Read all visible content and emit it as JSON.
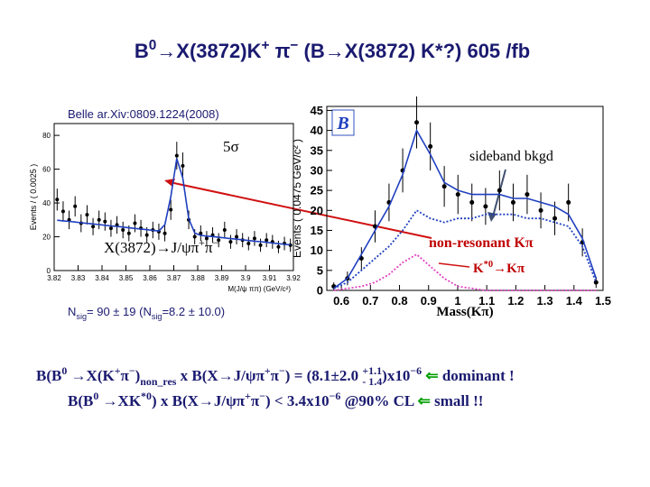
{
  "title": [
    {
      "text": "B"
    },
    {
      "text": "0",
      "shift": "up"
    },
    {
      "text": "→X(3872)K"
    },
    {
      "text": "+",
      "shift": "up"
    },
    {
      "text": " π"
    },
    {
      "text": "−",
      "shift": "up"
    },
    {
      "text": "  (B→X(3872) K*?) 605 /fb"
    }
  ],
  "annotations": {
    "source": "Belle ar.Xiv:0809.1224(2008)",
    "significance": "5σ",
    "decay": [
      {
        "text": "X(3872)→J/ψπ"
      },
      {
        "text": "+",
        "shift": "up"
      },
      {
        "text": "π"
      },
      {
        "text": "−",
        "shift": "up"
      }
    ],
    "yield": [
      {
        "text": "N"
      },
      {
        "text": "sig",
        "shift": "down"
      },
      {
        "text": "= 90 ± 19  (N"
      },
      {
        "text": "sig",
        "shift": "down"
      },
      {
        "text": "=8.2 ± 10.0)"
      }
    ],
    "sideband": "sideband bkgd",
    "nonresonant": "non-resonant Kπ",
    "kstar": [
      {
        "text": "K"
      },
      {
        "text": "*0",
        "shift": "up"
      },
      {
        "text": "→Kπ"
      }
    ]
  },
  "results": [
    [
      {
        "text": "B(B"
      },
      {
        "text": "0",
        "shift": "up"
      },
      {
        "text": " →X(K"
      },
      {
        "text": "+",
        "shift": "up"
      },
      {
        "text": "π"
      },
      {
        "text": "−",
        "shift": "up"
      },
      {
        "text": ")"
      },
      {
        "text": "non_res",
        "shift": "down"
      },
      {
        "text": " x B(X→J/ψπ"
      },
      {
        "text": "+",
        "shift": "up"
      },
      {
        "text": "π"
      },
      {
        "text": "−",
        "shift": "up"
      },
      {
        "text": ") = (8.1±2.0 "
      },
      {
        "text": "+1.1",
        "shift": "up"
      },
      {
        "text": "- 1.4",
        "shift": "down",
        "stack": true
      },
      {
        "text": ")x10"
      },
      {
        "text": "−6",
        "shift": "up"
      },
      {
        "text": " "
      },
      {
        "text": "⇐",
        "color": "#00a000"
      },
      {
        "text": " dominant !"
      }
    ],
    [
      {
        "text": "B(B"
      },
      {
        "text": "0",
        "shift": "up"
      },
      {
        "text": " →XK"
      },
      {
        "text": "*0",
        "shift": "up"
      },
      {
        "text": ") x B(X→J/ψπ"
      },
      {
        "text": "+",
        "shift": "up"
      },
      {
        "text": "π"
      },
      {
        "text": "−",
        "shift": "up"
      },
      {
        "text": ") < 3.4x10"
      },
      {
        "text": "−6",
        "shift": "up"
      },
      {
        "text": "   @90% CL "
      },
      {
        "text": "⇐",
        "color": "#00a000"
      },
      {
        "text": " small !!"
      }
    ]
  ],
  "chart_data": [
    {
      "type": "scatter",
      "ylabel": "Events / ( 0.0025 )",
      "xlabel": "M(J/ψ ππ) (GeV/c²)",
      "xlim": [
        3.82,
        3.92
      ],
      "xticks": [
        3.82,
        3.83,
        3.84,
        3.85,
        3.86,
        3.87,
        3.88,
        3.89,
        3.9,
        3.91,
        3.92
      ],
      "ylim": [
        0,
        87
      ],
      "yticks": [
        0,
        20,
        40,
        60,
        80
      ],
      "x": [
        3.82125,
        3.82375,
        3.82625,
        3.82875,
        3.83125,
        3.83375,
        3.83625,
        3.83875,
        3.84125,
        3.84375,
        3.84625,
        3.84875,
        3.85125,
        3.85375,
        3.85625,
        3.85875,
        3.86125,
        3.86375,
        3.86625,
        3.86875,
        3.87125,
        3.87375,
        3.87625,
        3.87875,
        3.88125,
        3.88375,
        3.88625,
        3.88875,
        3.89125,
        3.89375,
        3.89625,
        3.89875,
        3.90125,
        3.90375,
        3.90625,
        3.90875,
        3.91125,
        3.91375,
        3.91625,
        3.91875
      ],
      "series": [
        {
          "style": "points",
          "color": "#000000",
          "values": [
            42,
            35,
            30,
            38,
            28,
            33,
            26,
            30,
            29,
            25,
            27,
            24,
            22,
            28,
            25,
            21,
            24,
            23,
            22,
            36,
            68,
            62,
            30,
            20,
            22,
            19,
            21,
            18,
            24,
            17,
            20,
            18,
            16,
            19,
            15,
            18,
            17,
            14,
            16,
            15
          ],
          "errors": [
            6.5,
            6,
            5.5,
            6,
            5.3,
            5.7,
            5.1,
            5.5,
            5.4,
            5,
            5.2,
            4.9,
            4.7,
            5.3,
            5,
            4.6,
            4.9,
            4.8,
            4.7,
            6,
            8.2,
            7.9,
            5.5,
            4.5,
            4.7,
            4.4,
            4.6,
            4.2,
            4.9,
            4.1,
            4.5,
            4.2,
            4,
            4.4,
            3.9,
            4.2,
            4.1,
            3.7,
            4,
            3.9
          ]
        },
        {
          "style": "line",
          "color": "#1f3fbf",
          "values": [
            29.8,
            29.4,
            29.1,
            28.7,
            28.3,
            27.9,
            27.6,
            27.2,
            26.8,
            26.4,
            26.1,
            25.7,
            25.3,
            24.9,
            24.6,
            24.2,
            23.8,
            23.4,
            27.1,
            43.7,
            66.3,
            54.9,
            30.6,
            22.2,
            20.8,
            20.4,
            20.1,
            19.7,
            19.3,
            18.9,
            18.6,
            18.2,
            17.8,
            17.4,
            17.1,
            16.7,
            16.3,
            15.9,
            15.6,
            15.2
          ]
        }
      ]
    },
    {
      "type": "scatter",
      "ylabel": "Events ( 0.0475 GeV/c² )",
      "xlabel": "Mass(Kπ)",
      "xlim": [
        0.55,
        1.5
      ],
      "xticks": [
        0.6,
        0.7,
        0.8,
        0.9,
        1,
        1.1,
        1.2,
        1.3,
        1.4,
        1.5
      ],
      "ylim": [
        0,
        46
      ],
      "yticks": [
        0,
        5,
        10,
        15,
        20,
        25,
        30,
        35,
        40,
        45
      ],
      "x": [
        0.574,
        0.621,
        0.669,
        0.716,
        0.764,
        0.811,
        0.859,
        0.906,
        0.954,
        1.001,
        1.049,
        1.096,
        1.144,
        1.191,
        1.239,
        1.286,
        1.334,
        1.381,
        1.429,
        1.476
      ],
      "series": [
        {
          "style": "points",
          "color": "#000000",
          "values": [
            1,
            3,
            8,
            16,
            22,
            30,
            42,
            36,
            26,
            24,
            22,
            21,
            25,
            22,
            24,
            20,
            18,
            22,
            12,
            2
          ],
          "errors": [
            1,
            1.7,
            2.8,
            4,
            4.7,
            5.5,
            6.5,
            6,
            5.1,
            4.9,
            4.7,
            4.6,
            5,
            4.7,
            4.9,
            4.5,
            4.2,
            4.7,
            3.5,
            1.4
          ]
        },
        {
          "style": "line",
          "color": "#1f3fbf",
          "values": [
            0.5,
            3,
            9,
            15,
            21,
            29,
            40,
            34,
            27,
            25,
            24,
            24,
            24,
            23,
            23,
            22,
            21,
            19,
            13,
            3
          ]
        },
        {
          "style": "dotted",
          "color": "#1f3fbf",
          "values": [
            0.5,
            2,
            5,
            8,
            11,
            15,
            20,
            18,
            17,
            18,
            18,
            19,
            19,
            19,
            18,
            18,
            17,
            16,
            11,
            2
          ]
        },
        {
          "style": "dotted",
          "color": "#e040c0",
          "values": [
            0,
            0.5,
            1,
            2,
            4,
            7,
            9,
            6,
            3,
            1,
            0.5,
            0,
            0,
            0,
            0,
            0,
            0,
            0,
            0,
            0
          ]
        }
      ]
    }
  ]
}
